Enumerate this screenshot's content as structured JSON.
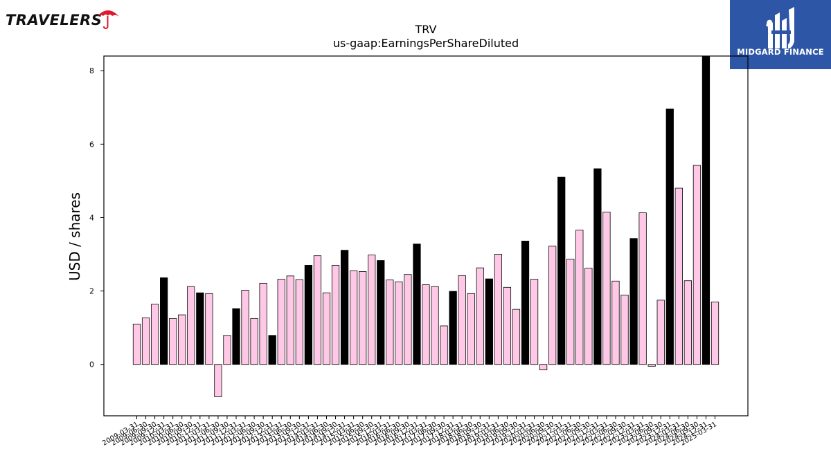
{
  "logos": {
    "left": {
      "text": "TRAVELERS",
      "icon": "umbrella-icon",
      "color": "#e01a2b"
    },
    "right": {
      "text": "MIDGARD FINANCE",
      "icon": "midgard-mark-icon",
      "background": "#2d56a6"
    }
  },
  "chart_data": {
    "type": "bar",
    "title": "TRV",
    "subtitle": "us-gaap:EarningsPerShareDiluted",
    "ylabel": "USD / shares",
    "xlabel": "",
    "ylim": [
      -1.4,
      8.4
    ],
    "yticks": [
      0,
      2,
      4,
      6,
      8
    ],
    "grid": false,
    "legend": "none",
    "colors": {
      "normal": "#ffc8e6",
      "highlight": "#000000",
      "edge": "#000000"
    },
    "categories": [
      "2009-03-31",
      "2009-06-30",
      "2009-09-30",
      "2009-12-31",
      "2010-03-31",
      "2010-06-30",
      "2010-09-30",
      "2010-12-31",
      "2011-03-31",
      "2011-06-30",
      "2011-09-30",
      "2011-12-31",
      "2012-03-31",
      "2012-06-30",
      "2012-09-30",
      "2012-12-31",
      "2013-03-31",
      "2013-06-30",
      "2013-09-30",
      "2013-12-31",
      "2014-03-31",
      "2014-06-30",
      "2014-09-30",
      "2014-12-31",
      "2015-03-31",
      "2015-06-30",
      "2015-09-30",
      "2015-12-31",
      "2016-03-31",
      "2016-06-30",
      "2016-09-30",
      "2016-12-31",
      "2017-03-31",
      "2017-06-30",
      "2017-09-30",
      "2017-12-31",
      "2018-03-31",
      "2018-06-30",
      "2018-09-30",
      "2018-12-31",
      "2019-03-31",
      "2019-06-30",
      "2019-09-30",
      "2019-12-31",
      "2020-03-31",
      "2020-06-30",
      "2020-09-30",
      "2020-12-31",
      "2021-03-31",
      "2021-06-30",
      "2021-09-30",
      "2021-12-31",
      "2022-03-31",
      "2022-06-30",
      "2022-09-30",
      "2022-12-31",
      "2023-03-31",
      "2023-06-30",
      "2023-09-30",
      "2023-12-31",
      "2024-03-31",
      "2024-06-30",
      "2024-09-30",
      "2024-12-31",
      "2025-03-31"
    ],
    "values": [
      1.1,
      1.27,
      1.64,
      2.36,
      1.25,
      1.35,
      2.12,
      1.95,
      1.93,
      -0.88,
      0.79,
      1.52,
      2.02,
      1.25,
      2.21,
      0.79,
      2.32,
      2.41,
      2.31,
      2.7,
      2.96,
      1.95,
      2.7,
      3.11,
      2.55,
      2.53,
      2.98,
      2.83,
      2.3,
      2.25,
      2.45,
      3.28,
      2.17,
      2.12,
      1.05,
      1.99,
      2.42,
      1.93,
      2.63,
      2.33,
      3.0,
      2.1,
      1.5,
      3.36,
      2.32,
      -0.15,
      3.22,
      5.1,
      2.87,
      3.66,
      2.62,
      5.33,
      4.15,
      2.27,
      1.89,
      3.43,
      4.13,
      -0.05,
      1.75,
      6.96,
      4.8,
      2.28,
      5.42,
      8.4,
      1.7
    ],
    "highlight": [
      false,
      false,
      false,
      true,
      false,
      false,
      false,
      true,
      false,
      false,
      false,
      true,
      false,
      false,
      false,
      true,
      false,
      false,
      false,
      true,
      false,
      false,
      false,
      true,
      false,
      false,
      false,
      true,
      false,
      false,
      false,
      true,
      false,
      false,
      false,
      true,
      false,
      false,
      false,
      true,
      false,
      false,
      false,
      true,
      false,
      false,
      false,
      true,
      false,
      false,
      false,
      true,
      false,
      false,
      false,
      true,
      false,
      false,
      false,
      true,
      false,
      false,
      false,
      true,
      false
    ]
  }
}
